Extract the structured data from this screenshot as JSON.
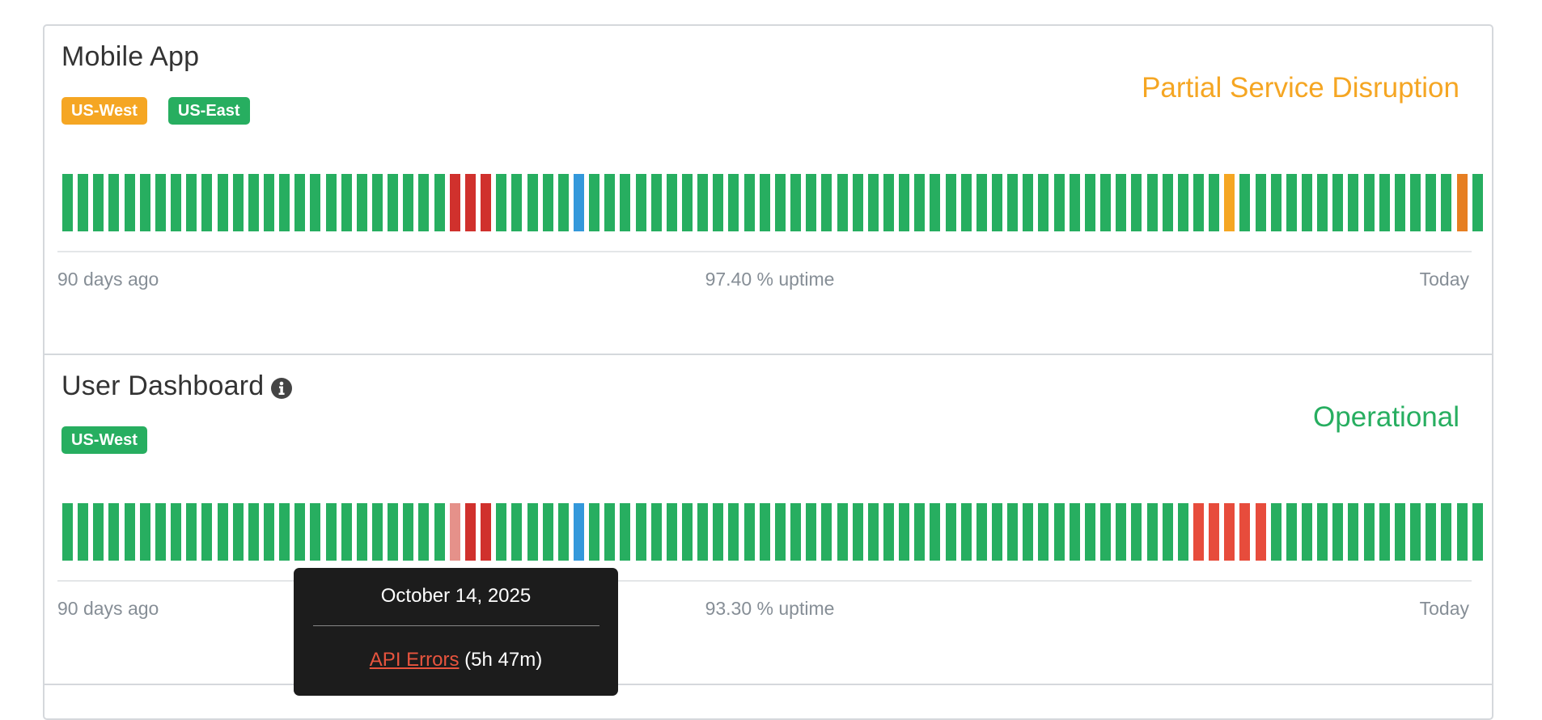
{
  "colors": {
    "operational": "#27ae60",
    "major": "#d0312d",
    "major_light": "#e74c3c",
    "minor_light": "#e5918a",
    "maintenance": "#3498db",
    "partial": "#f5a623",
    "partial_dark": "#e67e22"
  },
  "components": [
    {
      "name": "Mobile App",
      "has_info": false,
      "status": "Partial Service Disruption",
      "status_color": "#f5a623",
      "regions": [
        {
          "label": "US-West",
          "color": "#f5a623"
        },
        {
          "label": "US-East",
          "color": "#27ae60"
        }
      ],
      "days_ago_label": "90 days ago",
      "uptime_label": "97.40 % uptime",
      "today_label": "Today",
      "day_status": [
        "op",
        "op",
        "op",
        "op",
        "op",
        "op",
        "op",
        "op",
        "op",
        "op",
        "op",
        "op",
        "op",
        "op",
        "op",
        "op",
        "op",
        "op",
        "op",
        "op",
        "op",
        "op",
        "op",
        "op",
        "op",
        "major",
        "major",
        "major",
        "op",
        "op",
        "op",
        "op",
        "op",
        "maint",
        "op",
        "op",
        "op",
        "op",
        "op",
        "op",
        "op",
        "op",
        "op",
        "op",
        "op",
        "op",
        "op",
        "op",
        "op",
        "op",
        "op",
        "op",
        "op",
        "op",
        "op",
        "op",
        "op",
        "op",
        "op",
        "op",
        "op",
        "op",
        "op",
        "op",
        "op",
        "op",
        "op",
        "op",
        "op",
        "op",
        "op",
        "op",
        "op",
        "op",
        "op",
        "partial",
        "op",
        "op",
        "op",
        "op",
        "op",
        "op",
        "op",
        "op",
        "op",
        "op",
        "op",
        "op",
        "op",
        "op",
        "partial_dark",
        "op"
      ]
    },
    {
      "name": "User Dashboard",
      "has_info": true,
      "status": "Operational",
      "status_color": "#27ae60",
      "regions": [
        {
          "label": "US-West",
          "color": "#27ae60"
        }
      ],
      "days_ago_label": "90 days ago",
      "uptime_label": "93.30 % uptime",
      "today_label": "Today",
      "day_status": [
        "op",
        "op",
        "op",
        "op",
        "op",
        "op",
        "op",
        "op",
        "op",
        "op",
        "op",
        "op",
        "op",
        "op",
        "op",
        "op",
        "op",
        "op",
        "op",
        "op",
        "op",
        "op",
        "op",
        "op",
        "op",
        "minor_light",
        "major",
        "major",
        "op",
        "op",
        "op",
        "op",
        "op",
        "maint",
        "op",
        "op",
        "op",
        "op",
        "op",
        "op",
        "op",
        "op",
        "op",
        "op",
        "op",
        "op",
        "op",
        "op",
        "op",
        "op",
        "op",
        "op",
        "op",
        "op",
        "op",
        "op",
        "op",
        "op",
        "op",
        "op",
        "op",
        "op",
        "op",
        "op",
        "op",
        "op",
        "op",
        "op",
        "op",
        "op",
        "op",
        "op",
        "op",
        "major_light",
        "major_light",
        "major_light",
        "major_light",
        "major_light",
        "op",
        "op",
        "op",
        "op",
        "op",
        "op",
        "op",
        "op",
        "op",
        "op",
        "op",
        "op",
        "op",
        "op"
      ]
    }
  ],
  "tooltip": {
    "date": "October 14, 2025",
    "incident": "API Errors",
    "duration": "(5h 47m)"
  }
}
